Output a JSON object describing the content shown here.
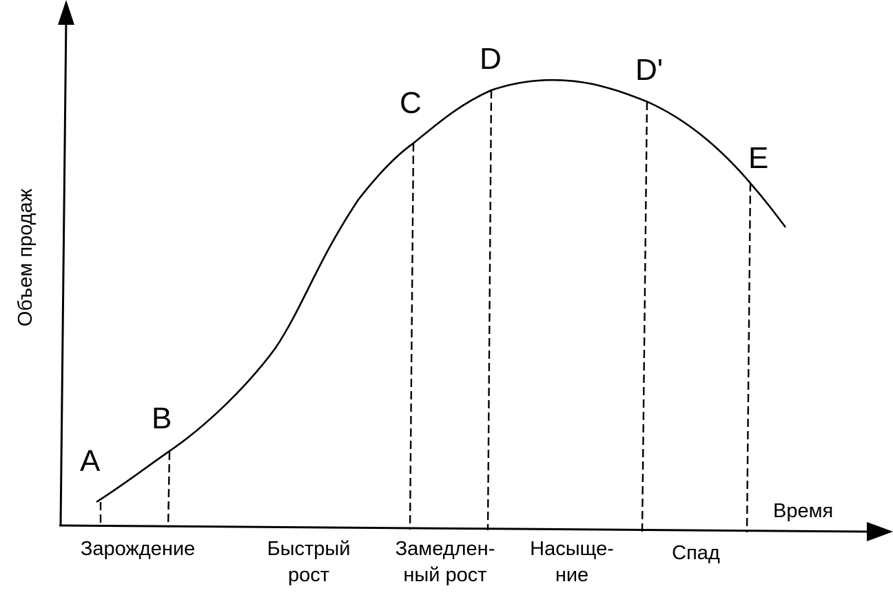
{
  "diagram": {
    "y_axis_label": "Объем продаж",
    "x_axis_label": "Время",
    "points": {
      "a": "A",
      "b": "B",
      "c": "C",
      "d": "D",
      "d_prime": "D'",
      "e": "E"
    },
    "stages": {
      "birth": [
        "Зарождение"
      ],
      "rapid_growth": [
        "Быстрый",
        "рост"
      ],
      "slow_growth": [
        "Замедлен-",
        "ный рост"
      ],
      "saturation": [
        "Насыще-",
        "ние"
      ],
      "decline": [
        "Спад"
      ]
    }
  }
}
